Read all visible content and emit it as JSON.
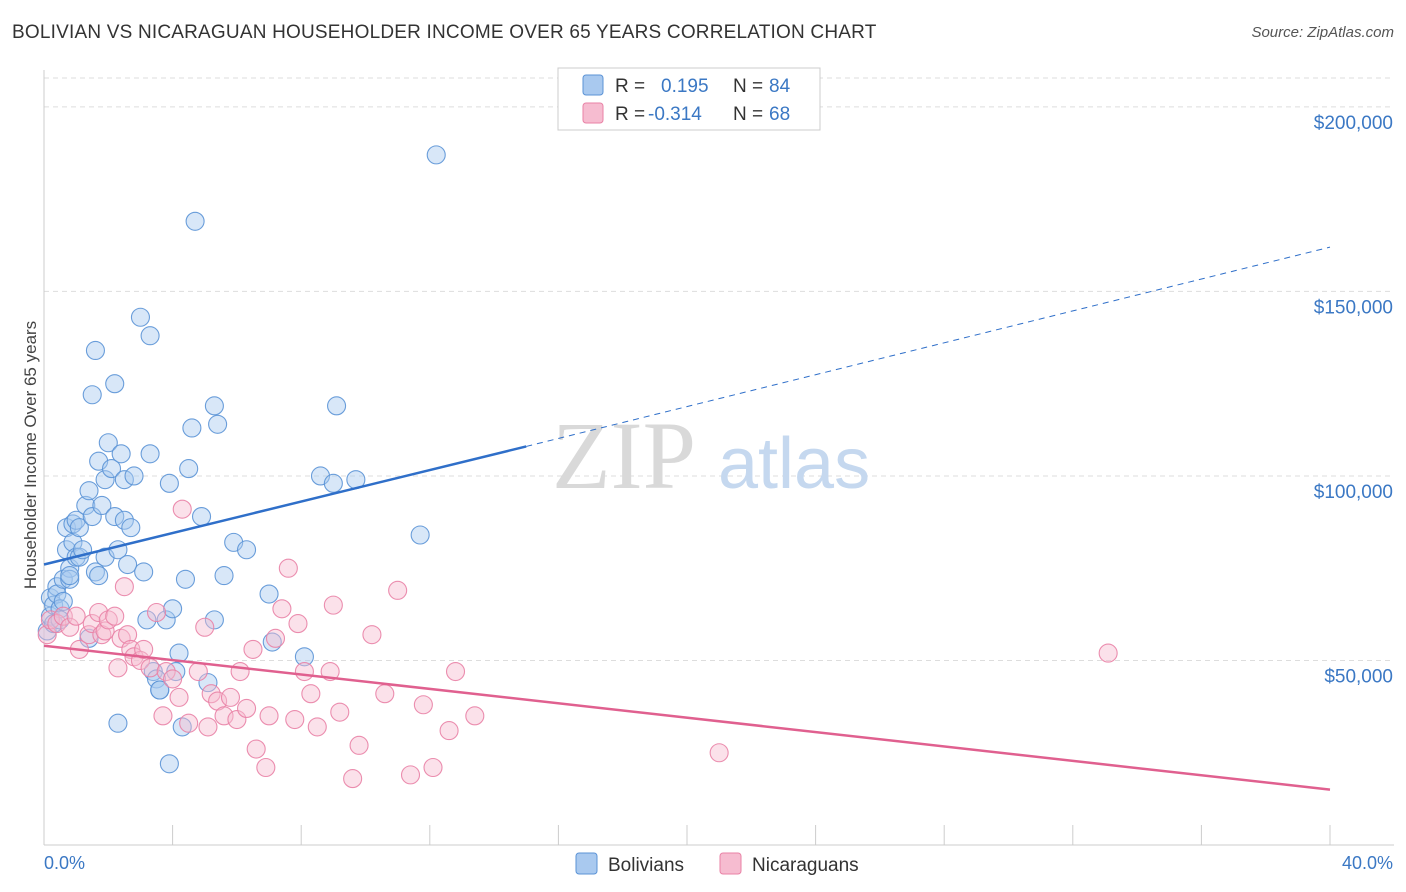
{
  "header": {
    "title": "BOLIVIAN VS NICARAGUAN HOUSEHOLDER INCOME OVER 65 YEARS CORRELATION CHART",
    "source": "Source: ZipAtlas.com"
  },
  "watermark": {
    "part1": "ZIP",
    "part2": "atlas"
  },
  "colors": {
    "bolivians_fill": "#a9c9ef",
    "bolivians_stroke": "#5b93d6",
    "bolivians_line": "#2f6fc9",
    "nicaraguans_fill": "#f6bcd0",
    "nicaraguans_stroke": "#e982a6",
    "nicaraguans_line": "#e0608f",
    "grid": "#dddddd",
    "tick_label": "#3b78c4"
  },
  "legend": {
    "rows": [
      {
        "r_label": "R =",
        "r_value": "0.195",
        "n_label": "N =",
        "n_value": "84"
      },
      {
        "r_label": "R =",
        "r_value": "-0.314",
        "n_label": "N =",
        "n_value": "68"
      }
    ]
  },
  "chart_data": {
    "type": "scatter",
    "title": "BOLIVIAN VS NICARAGUAN HOUSEHOLDER INCOME OVER 65 YEARS CORRELATION CHART",
    "ylabel": "Householder Income Over 65 years",
    "xlim": [
      0,
      40
    ],
    "ylim": [
      0,
      210000
    ],
    "x_tick_labels": [
      "0.0%",
      "40.0%"
    ],
    "y_ticks": [
      50000,
      100000,
      150000,
      200000
    ],
    "y_tick_labels": [
      "$50,000",
      "$100,000",
      "$150,000",
      "$200,000"
    ],
    "grid": true,
    "legend_position": "top-center",
    "series": [
      {
        "name": "Bolivians",
        "r": 0.195,
        "n": 84,
        "trend": {
          "x0": 0,
          "y0": 76000,
          "x1": 15,
          "y1": 108000,
          "dashed_to_x": 40,
          "dashed_to_y": 162000
        },
        "points": [
          [
            0.1,
            58000
          ],
          [
            0.2,
            67000
          ],
          [
            0.2,
            62000
          ],
          [
            0.3,
            65000
          ],
          [
            0.3,
            60000
          ],
          [
            0.4,
            70000
          ],
          [
            0.4,
            68000
          ],
          [
            0.5,
            64000
          ],
          [
            0.5,
            61000
          ],
          [
            0.6,
            66000
          ],
          [
            0.6,
            72000
          ],
          [
            0.7,
            86000
          ],
          [
            0.7,
            80000
          ],
          [
            0.8,
            75000
          ],
          [
            0.8,
            72000
          ],
          [
            0.9,
            82000
          ],
          [
            0.9,
            87000
          ],
          [
            1.0,
            88000
          ],
          [
            1.0,
            78000
          ],
          [
            1.1,
            86000
          ],
          [
            1.1,
            78000
          ],
          [
            1.2,
            80000
          ],
          [
            1.3,
            92000
          ],
          [
            1.4,
            96000
          ],
          [
            1.4,
            56000
          ],
          [
            1.5,
            89000
          ],
          [
            1.5,
            122000
          ],
          [
            1.6,
            74000
          ],
          [
            1.6,
            134000
          ],
          [
            1.7,
            73000
          ],
          [
            1.7,
            104000
          ],
          [
            1.8,
            92000
          ],
          [
            1.9,
            99000
          ],
          [
            1.9,
            78000
          ],
          [
            2.0,
            109000
          ],
          [
            2.1,
            102000
          ],
          [
            2.2,
            125000
          ],
          [
            2.2,
            89000
          ],
          [
            2.3,
            80000
          ],
          [
            2.3,
            33000
          ],
          [
            2.4,
            106000
          ],
          [
            2.5,
            99000
          ],
          [
            2.5,
            88000
          ],
          [
            2.6,
            76000
          ],
          [
            2.7,
            86000
          ],
          [
            2.8,
            100000
          ],
          [
            3.0,
            143000
          ],
          [
            3.1,
            74000
          ],
          [
            3.2,
            61000
          ],
          [
            3.3,
            138000
          ],
          [
            3.3,
            106000
          ],
          [
            3.4,
            47000
          ],
          [
            3.5,
            45000
          ],
          [
            3.6,
            42000
          ],
          [
            3.8,
            61000
          ],
          [
            3.9,
            98000
          ],
          [
            4.0,
            64000
          ],
          [
            4.1,
            47000
          ],
          [
            4.2,
            52000
          ],
          [
            4.3,
            32000
          ],
          [
            4.4,
            72000
          ],
          [
            4.5,
            102000
          ],
          [
            4.6,
            113000
          ],
          [
            4.7,
            169000
          ],
          [
            4.9,
            89000
          ],
          [
            5.1,
            44000
          ],
          [
            5.3,
            119000
          ],
          [
            5.3,
            61000
          ],
          [
            5.4,
            114000
          ],
          [
            5.6,
            73000
          ],
          [
            5.9,
            82000
          ],
          [
            6.3,
            80000
          ],
          [
            7.0,
            68000
          ],
          [
            7.1,
            55000
          ],
          [
            8.1,
            51000
          ],
          [
            8.6,
            100000
          ],
          [
            9.0,
            98000
          ],
          [
            9.1,
            119000
          ],
          [
            9.7,
            99000
          ],
          [
            11.7,
            84000
          ],
          [
            12.2,
            187000
          ],
          [
            3.9,
            22000
          ],
          [
            3.6,
            42000
          ],
          [
            0.8,
            73000
          ]
        ]
      },
      {
        "name": "Nicaraguans",
        "r": -0.314,
        "n": 68,
        "trend": {
          "x0": 0,
          "y0": 54000,
          "x1": 40,
          "y1": 15000
        },
        "points": [
          [
            0.1,
            57000
          ],
          [
            0.2,
            61000
          ],
          [
            0.4,
            60000
          ],
          [
            0.6,
            62000
          ],
          [
            0.8,
            59000
          ],
          [
            1.0,
            62000
          ],
          [
            1.1,
            53000
          ],
          [
            1.4,
            57000
          ],
          [
            1.5,
            60000
          ],
          [
            1.7,
            63000
          ],
          [
            1.8,
            57000
          ],
          [
            1.9,
            58000
          ],
          [
            2.0,
            61000
          ],
          [
            2.2,
            62000
          ],
          [
            2.3,
            48000
          ],
          [
            2.4,
            56000
          ],
          [
            2.5,
            70000
          ],
          [
            2.6,
            57000
          ],
          [
            2.7,
            53000
          ],
          [
            2.8,
            51000
          ],
          [
            3.0,
            50000
          ],
          [
            3.1,
            53000
          ],
          [
            3.3,
            48000
          ],
          [
            3.5,
            63000
          ],
          [
            3.7,
            35000
          ],
          [
            3.8,
            47000
          ],
          [
            4.0,
            45000
          ],
          [
            4.2,
            40000
          ],
          [
            4.3,
            91000
          ],
          [
            4.5,
            33000
          ],
          [
            4.8,
            47000
          ],
          [
            5.0,
            59000
          ],
          [
            5.1,
            32000
          ],
          [
            5.2,
            41000
          ],
          [
            5.4,
            39000
          ],
          [
            5.6,
            35000
          ],
          [
            5.8,
            40000
          ],
          [
            6.0,
            34000
          ],
          [
            6.1,
            47000
          ],
          [
            6.3,
            37000
          ],
          [
            6.5,
            53000
          ],
          [
            6.6,
            26000
          ],
          [
            6.9,
            21000
          ],
          [
            7.0,
            35000
          ],
          [
            7.2,
            56000
          ],
          [
            7.4,
            64000
          ],
          [
            7.6,
            75000
          ],
          [
            7.8,
            34000
          ],
          [
            7.9,
            60000
          ],
          [
            8.1,
            47000
          ],
          [
            8.3,
            41000
          ],
          [
            8.5,
            32000
          ],
          [
            8.9,
            47000
          ],
          [
            9.0,
            65000
          ],
          [
            9.2,
            36000
          ],
          [
            9.6,
            18000
          ],
          [
            9.8,
            27000
          ],
          [
            10.2,
            57000
          ],
          [
            10.6,
            41000
          ],
          [
            11.0,
            69000
          ],
          [
            11.4,
            19000
          ],
          [
            11.8,
            38000
          ],
          [
            12.1,
            21000
          ],
          [
            12.6,
            31000
          ],
          [
            12.8,
            47000
          ],
          [
            13.4,
            35000
          ],
          [
            21.0,
            25000
          ],
          [
            33.1,
            52000
          ]
        ]
      }
    ]
  },
  "bottom_legend": {
    "items": [
      {
        "label": "Bolivians"
      },
      {
        "label": "Nicaraguans"
      }
    ]
  }
}
